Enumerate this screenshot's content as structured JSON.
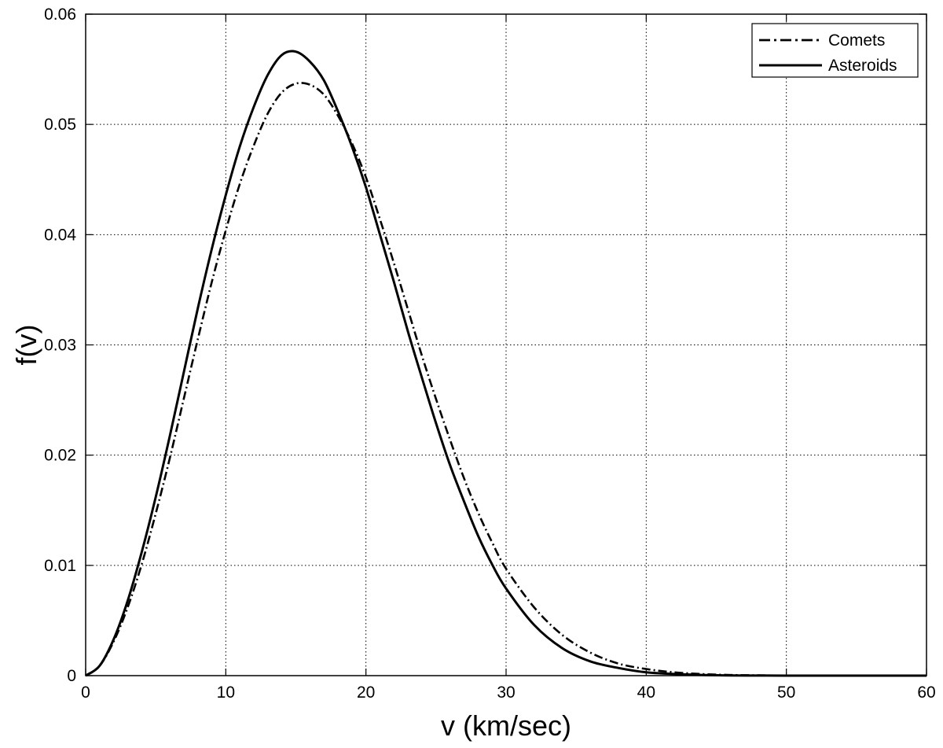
{
  "chart_data": {
    "type": "line",
    "title": "",
    "xlabel": "v (km/sec)",
    "ylabel": "f(v)",
    "xlim": [
      0,
      60
    ],
    "ylim": [
      0,
      0.06
    ],
    "xticks": [
      0,
      10,
      20,
      30,
      40,
      50,
      60
    ],
    "yticks": [
      0,
      0.01,
      0.02,
      0.03,
      0.04,
      0.05,
      0.06
    ],
    "xtick_labels": [
      "0",
      "10",
      "20",
      "30",
      "40",
      "50",
      "60"
    ],
    "ytick_labels": [
      "0",
      "0.01",
      "0.02",
      "0.03",
      "0.04",
      "0.05",
      "0.06"
    ],
    "grid": true,
    "legend_position": "top-right",
    "series": [
      {
        "name": "Comets",
        "line_style": "dash-dot",
        "color": "#000000",
        "x": [
          0,
          1,
          2,
          3,
          4,
          5,
          6,
          7,
          8,
          9,
          10,
          11,
          12,
          13,
          14,
          15,
          16,
          17,
          18,
          19,
          20,
          21,
          22,
          23,
          24,
          25,
          26,
          27,
          28,
          29,
          30,
          32,
          34,
          36,
          38,
          40,
          42,
          44,
          46,
          48,
          50,
          55,
          60
        ],
        "y": [
          0,
          0.0009,
          0.0031,
          0.0062,
          0.0101,
          0.0147,
          0.0197,
          0.0251,
          0.0305,
          0.0357,
          0.0404,
          0.0446,
          0.0481,
          0.051,
          0.0529,
          0.0537,
          0.0536,
          0.0527,
          0.0508,
          0.0483,
          0.0452,
          0.0414,
          0.0374,
          0.0332,
          0.029,
          0.0251,
          0.0214,
          0.0179,
          0.0148,
          0.0121,
          0.0097,
          0.0062,
          0.0037,
          0.0021,
          0.0011,
          0.0006,
          0.0003,
          0.00014,
          6e-05,
          3e-05,
          1e-05,
          0,
          0
        ]
      },
      {
        "name": "Asteroids",
        "line_style": "solid",
        "color": "#000000",
        "x": [
          0,
          1,
          2,
          3,
          4,
          5,
          6,
          7,
          8,
          9,
          10,
          11,
          12,
          13,
          14,
          15,
          16,
          17,
          18,
          19,
          20,
          21,
          22,
          23,
          24,
          25,
          26,
          27,
          28,
          29,
          30,
          32,
          34,
          36,
          38,
          40,
          42,
          44,
          46,
          48,
          50,
          55,
          60
        ],
        "y": [
          0,
          0.0009,
          0.0033,
          0.0068,
          0.0112,
          0.0162,
          0.0217,
          0.0275,
          0.0333,
          0.0387,
          0.0436,
          0.048,
          0.0516,
          0.0545,
          0.0563,
          0.0566,
          0.0557,
          0.054,
          0.0512,
          0.048,
          0.0443,
          0.04,
          0.0357,
          0.0312,
          0.027,
          0.0229,
          0.0191,
          0.0158,
          0.0127,
          0.0101,
          0.0079,
          0.0046,
          0.0025,
          0.0013,
          0.0007,
          0.0003,
          0.00015,
          6e-05,
          2e-05,
          1e-05,
          0,
          0,
          0
        ]
      }
    ]
  }
}
